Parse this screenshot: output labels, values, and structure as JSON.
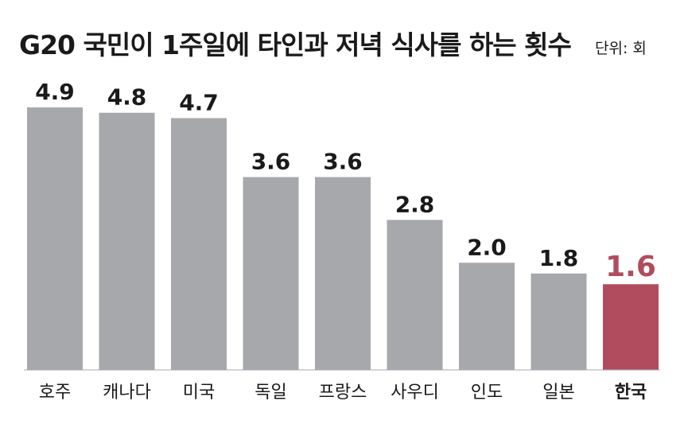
{
  "title": "G20 국민이 1주일에 타인과 저녁 식사를 하는 횟수",
  "unit": "단위: 회",
  "chart_data": {
    "type": "bar",
    "categories": [
      "호주",
      "캐나다",
      "미국",
      "독일",
      "프랑스",
      "사우디",
      "인도",
      "일본",
      "한국"
    ],
    "values": [
      4.9,
      4.8,
      4.7,
      3.6,
      3.6,
      2.8,
      2.0,
      1.8,
      1.6
    ],
    "value_labels": [
      "4.9",
      "4.8",
      "4.7",
      "3.6",
      "3.6",
      "2.8",
      "2.0",
      "1.8",
      "1.6"
    ],
    "highlight_category": "한국",
    "bar_color": "#a7a8ab",
    "highlight_color": "#b04c5e",
    "ylim": [
      0,
      4.9
    ],
    "grid": false,
    "legend": "none"
  }
}
